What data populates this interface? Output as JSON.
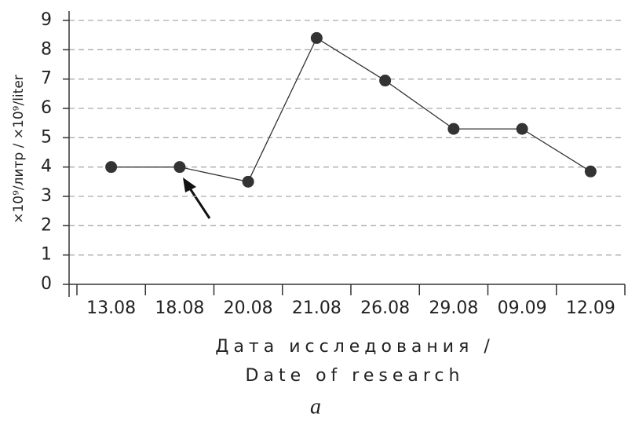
{
  "chart_data": {
    "type": "line",
    "ylabel": "×10⁹/литр / ×10⁹/liter",
    "xlabel": [
      "Дата исследования /",
      "Date of research"
    ],
    "categories": [
      "13.08",
      "18.08",
      "20.08",
      "21.08",
      "26.08",
      "29.08",
      "09.09",
      "12.09"
    ],
    "values": [
      4,
      4,
      3.5,
      8.4,
      6.95,
      5.3,
      5.3,
      3.85
    ],
    "color": "#333333",
    "ylim": [
      0,
      9
    ],
    "yticks": [
      0,
      1,
      2,
      3,
      4,
      5,
      6,
      7,
      8,
      9
    ],
    "grid": true
  },
  "caption": "a"
}
